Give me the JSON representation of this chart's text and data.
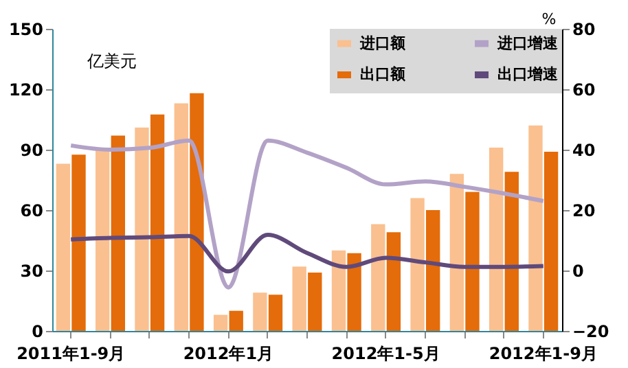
{
  "chart_data": {
    "type": "bar",
    "ylabel": "亿美元",
    "y2label": "%",
    "categories": [
      "2011年1-9月",
      null,
      null,
      null,
      "2012年1月",
      null,
      null,
      null,
      "2012年1-5月",
      null,
      null,
      null,
      "2012年1-9月"
    ],
    "series": [
      {
        "name": "进口额",
        "color": "#fac090",
        "values": [
          83,
          90,
          101,
          113,
          8,
          19,
          32,
          40,
          53,
          66,
          78,
          91,
          102
        ]
      },
      {
        "name": "出口额",
        "color": "#e46c0a",
        "values": [
          87.5,
          97,
          107.5,
          118,
          10,
          18,
          29,
          38.6,
          49,
          60,
          69,
          79,
          89
        ]
      },
      {
        "name": "进口增速",
        "type": "line",
        "axis": "y2",
        "color": "#b3a2c7",
        "values": [
          41.4,
          40,
          40.6,
          43,
          -5.6,
          43,
          39,
          34,
          28.5,
          29.5,
          27.7,
          25.5,
          23
        ]
      },
      {
        "name": "出口增速",
        "type": "line",
        "axis": "y2",
        "color": "#604a7b",
        "values": [
          10.3,
          10.8,
          11,
          11.4,
          -0.3,
          11.8,
          5.8,
          1.2,
          4.2,
          2.7,
          1.2,
          1.2,
          1.5
        ]
      }
    ],
    "ylim": [
      0,
      150
    ],
    "yticks": [
      0,
      30,
      60,
      90,
      120,
      150
    ],
    "y2lim": [
      -20,
      80
    ],
    "y2ticks": [
      -20,
      0,
      20,
      40,
      60,
      80
    ],
    "grid": false,
    "legend": "top right"
  }
}
